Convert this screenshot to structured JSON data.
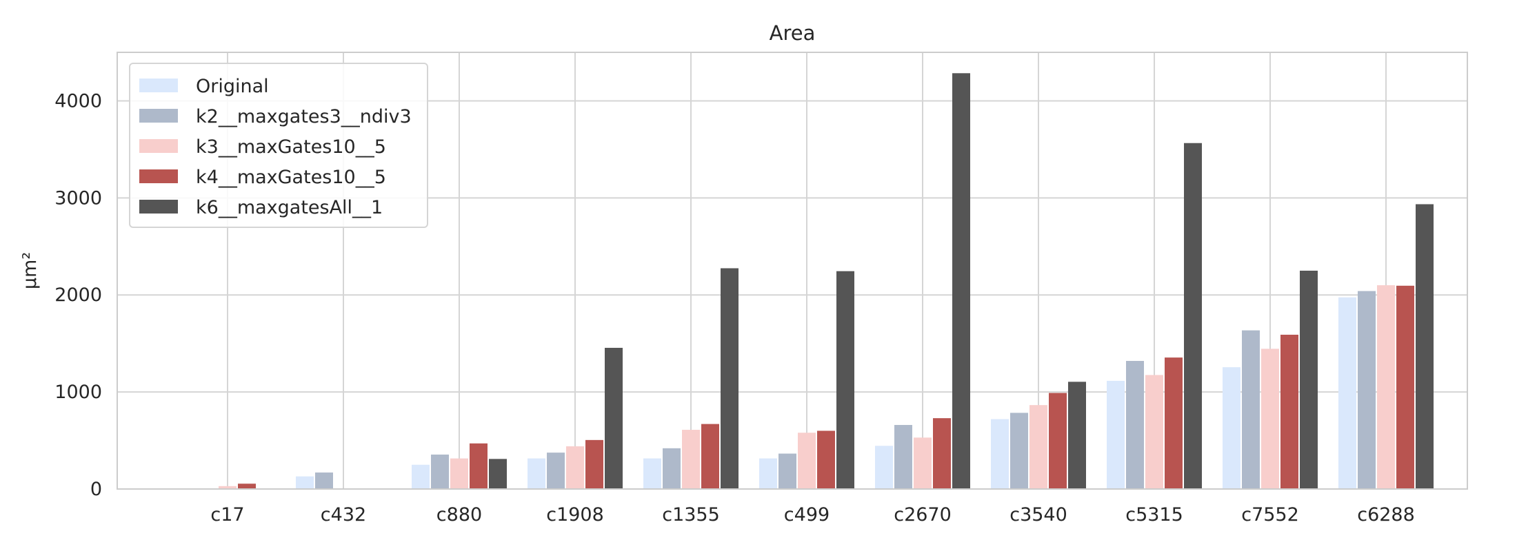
{
  "chart_data": {
    "type": "bar",
    "title": "Area",
    "xlabel": "",
    "ylabel": "µm²",
    "categories": [
      "c17",
      "c432",
      "c880",
      "c1908",
      "c1355",
      "c499",
      "c2670",
      "c3540",
      "c5315",
      "c7552",
      "c6288"
    ],
    "ylim": [
      0,
      4500
    ],
    "yticks": [
      0,
      1000,
      2000,
      3000,
      4000
    ],
    "grid": true,
    "legend_position": "top-left",
    "series": [
      {
        "name": "Original",
        "color": "#dae8fc",
        "values": [
          0,
          130,
          250,
          315,
          315,
          315,
          445,
          720,
          1115,
          1255,
          1975
        ]
      },
      {
        "name": "k2__maxgates3__ndiv3",
        "color": "#aeb9ca",
        "values": [
          0,
          170,
          355,
          375,
          420,
          365,
          660,
          785,
          1320,
          1635,
          2040
        ]
      },
      {
        "name": "k3__maxGates10__5",
        "color": "#f8cecc",
        "values": [
          30,
          0,
          315,
          440,
          610,
          580,
          530,
          865,
          1175,
          1445,
          2100
        ]
      },
      {
        "name": "k4__maxGates10__5",
        "color": "#b85450",
        "values": [
          55,
          0,
          470,
          505,
          670,
          600,
          730,
          990,
          1355,
          1590,
          2095
        ]
      },
      {
        "name": "k6__maxgatesAll__1",
        "color": "#555555",
        "values": [
          0,
          0,
          310,
          1455,
          2275,
          2245,
          4285,
          1105,
          3565,
          2250,
          2935
        ]
      }
    ]
  }
}
